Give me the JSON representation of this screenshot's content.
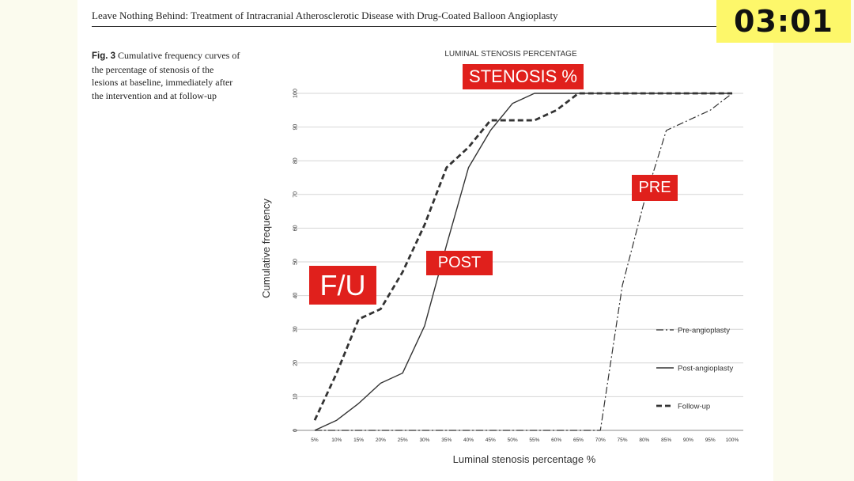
{
  "header": {
    "running_title": "Leave Nothing Behind: Treatment of Intracranial Atherosclerotic Disease with Drug-Coated Balloon Angioplasty",
    "timer": "03:01"
  },
  "caption": {
    "fig_label": "Fig. 3",
    "text": "Cumulative frequency curves of the percentage of stenosis of the lesions at baseline, immediately after the intervention and at follow-up"
  },
  "overlay_labels": {
    "stenosis": "STENOSIS %",
    "fu": "F/U",
    "post": "POST",
    "pre": "PRE"
  },
  "colors": {
    "overlay_red": "#e0201c",
    "series": "#333333",
    "timer_bg": "#fdf76a"
  },
  "chart_data": {
    "type": "line",
    "title": "LUMINAL STENOSIS PERCENTAGE",
    "xlabel": "Luminal stenosis percentage %",
    "ylabel": "Cumulative frequency",
    "categories": [
      "5%",
      "10%",
      "15%",
      "20%",
      "25%",
      "30%",
      "35%",
      "40%",
      "45%",
      "50%",
      "55%",
      "60%",
      "65%",
      "70%",
      "75%",
      "80%",
      "85%",
      "90%",
      "95%",
      "100%"
    ],
    "ylim": [
      0,
      100
    ],
    "yticks": [
      0,
      10,
      20,
      30,
      40,
      50,
      60,
      70,
      80,
      90,
      100
    ],
    "grid": true,
    "legend_position": "right",
    "series": [
      {
        "name": "Pre-angioplasty",
        "style": "dashdot",
        "values": [
          0,
          0,
          0,
          0,
          0,
          0,
          0,
          0,
          0,
          0,
          0,
          0,
          0,
          0,
          43,
          68,
          89,
          92,
          95,
          100
        ]
      },
      {
        "name": "Post-angioplasty",
        "style": "solid",
        "values": [
          0,
          3,
          8,
          14,
          17,
          31,
          55,
          78,
          89,
          97,
          100,
          100,
          100,
          100,
          100,
          100,
          100,
          100,
          100,
          100
        ]
      },
      {
        "name": "Follow-up",
        "style": "dashed",
        "values": [
          3,
          17,
          33,
          36,
          47,
          61,
          78,
          84,
          92,
          92,
          92,
          95,
          100,
          100,
          100,
          100,
          100,
          100,
          100,
          100
        ]
      }
    ]
  }
}
